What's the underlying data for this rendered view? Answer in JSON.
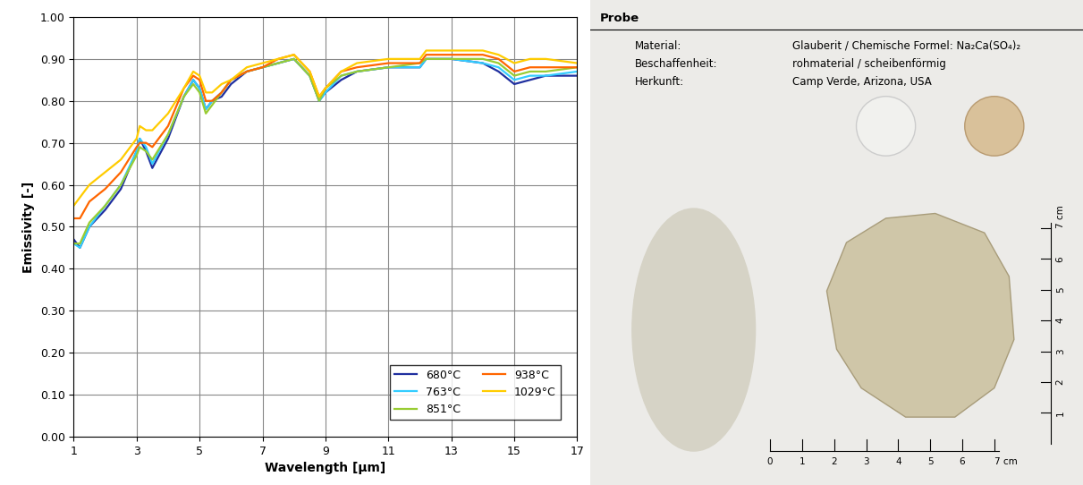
{
  "chart_data": {
    "type": "line",
    "x_label": "Wavelength [µm]",
    "y_label": "Emissivity [-]",
    "x": [
      1,
      1.2,
      1.5,
      2,
      2.5,
      3,
      3.1,
      3.3,
      3.5,
      4,
      4.5,
      4.8,
      5,
      5.2,
      5.4,
      5.7,
      6,
      6.5,
      7,
      7.5,
      8,
      8.5,
      8.8,
      9,
      9.5,
      10,
      11,
      12,
      12.2,
      13,
      14,
      14.5,
      15,
      15.5,
      16,
      17
    ],
    "series": [
      {
        "name": "680°C",
        "color": "#1f2f9f",
        "values": [
          0.47,
          0.45,
          0.5,
          0.54,
          0.59,
          0.68,
          0.71,
          0.68,
          0.64,
          0.71,
          0.81,
          0.85,
          0.83,
          0.78,
          0.8,
          0.81,
          0.84,
          0.87,
          0.88,
          0.89,
          0.9,
          0.86,
          0.8,
          0.82,
          0.85,
          0.87,
          0.88,
          0.88,
          0.9,
          0.9,
          0.89,
          0.87,
          0.84,
          0.85,
          0.86,
          0.86
        ]
      },
      {
        "name": "763°C",
        "color": "#33ccff",
        "values": [
          0.46,
          0.45,
          0.5,
          0.55,
          0.6,
          0.68,
          0.71,
          0.69,
          0.65,
          0.72,
          0.81,
          0.85,
          0.83,
          0.78,
          0.8,
          0.82,
          0.85,
          0.87,
          0.88,
          0.89,
          0.9,
          0.86,
          0.8,
          0.82,
          0.86,
          0.87,
          0.88,
          0.88,
          0.9,
          0.9,
          0.89,
          0.88,
          0.85,
          0.86,
          0.86,
          0.87
        ]
      },
      {
        "name": "851°C",
        "color": "#99cc33",
        "values": [
          0.46,
          0.46,
          0.51,
          0.55,
          0.6,
          0.67,
          0.69,
          0.68,
          0.66,
          0.72,
          0.81,
          0.84,
          0.82,
          0.77,
          0.79,
          0.82,
          0.85,
          0.87,
          0.88,
          0.89,
          0.9,
          0.86,
          0.8,
          0.83,
          0.86,
          0.87,
          0.88,
          0.89,
          0.9,
          0.9,
          0.9,
          0.89,
          0.86,
          0.87,
          0.87,
          0.88
        ]
      },
      {
        "name": "938°C",
        "color": "#ff6600",
        "values": [
          0.52,
          0.52,
          0.56,
          0.59,
          0.63,
          0.69,
          0.7,
          0.7,
          0.69,
          0.74,
          0.83,
          0.86,
          0.85,
          0.8,
          0.8,
          0.82,
          0.85,
          0.87,
          0.88,
          0.9,
          0.91,
          0.87,
          0.81,
          0.83,
          0.87,
          0.88,
          0.89,
          0.89,
          0.91,
          0.91,
          0.91,
          0.9,
          0.87,
          0.88,
          0.88,
          0.88
        ]
      },
      {
        "name": "1029°C",
        "color": "#ffcc00",
        "values": [
          0.55,
          0.57,
          0.6,
          0.63,
          0.66,
          0.71,
          0.74,
          0.73,
          0.73,
          0.77,
          0.83,
          0.87,
          0.86,
          0.82,
          0.82,
          0.84,
          0.85,
          0.88,
          0.89,
          0.9,
          0.91,
          0.87,
          0.81,
          0.83,
          0.87,
          0.89,
          0.9,
          0.9,
          0.92,
          0.92,
          0.92,
          0.91,
          0.89,
          0.9,
          0.9,
          0.89
        ]
      }
    ],
    "xlim": [
      1,
      17
    ],
    "xticks": [
      1,
      3,
      5,
      7,
      9,
      11,
      13,
      15,
      17
    ],
    "ylim": [
      0,
      1
    ],
    "yticks": [
      {
        "value": 0,
        "label": "0.00"
      },
      {
        "value": 0.1,
        "label": "0.10"
      },
      {
        "value": 0.2,
        "label": "0.20"
      },
      {
        "value": 0.3,
        "label": "0.30"
      },
      {
        "value": 0.4,
        "label": "0.40"
      },
      {
        "value": 0.5,
        "label": "0.50"
      },
      {
        "value": 0.6,
        "label": "0.60"
      },
      {
        "value": 0.7,
        "label": "0.70"
      },
      {
        "value": 0.8,
        "label": "0.80"
      },
      {
        "value": 0.9,
        "label": "0.90"
      },
      {
        "value": 1,
        "label": "1.00"
      }
    ],
    "grid": true,
    "legend": "lower right"
  },
  "photo": {
    "header": "Probe",
    "rows": [
      [
        "Material:",
        "Glauberit / Chemische Formel: Na₂Ca(SO₄)₂"
      ],
      [
        "Beschaffenheit:",
        "rohmaterial / scheibenförmig"
      ],
      [
        "Herkunft:",
        "Camp Verde, Arizona, USA"
      ]
    ],
    "scale_horizontal": [
      "0",
      "1",
      "2",
      "3",
      "4",
      "5",
      "6",
      "7 cm"
    ],
    "scale_vertical": [
      "1",
      "2",
      "3",
      "4",
      "5",
      "6",
      "7 cm"
    ]
  }
}
